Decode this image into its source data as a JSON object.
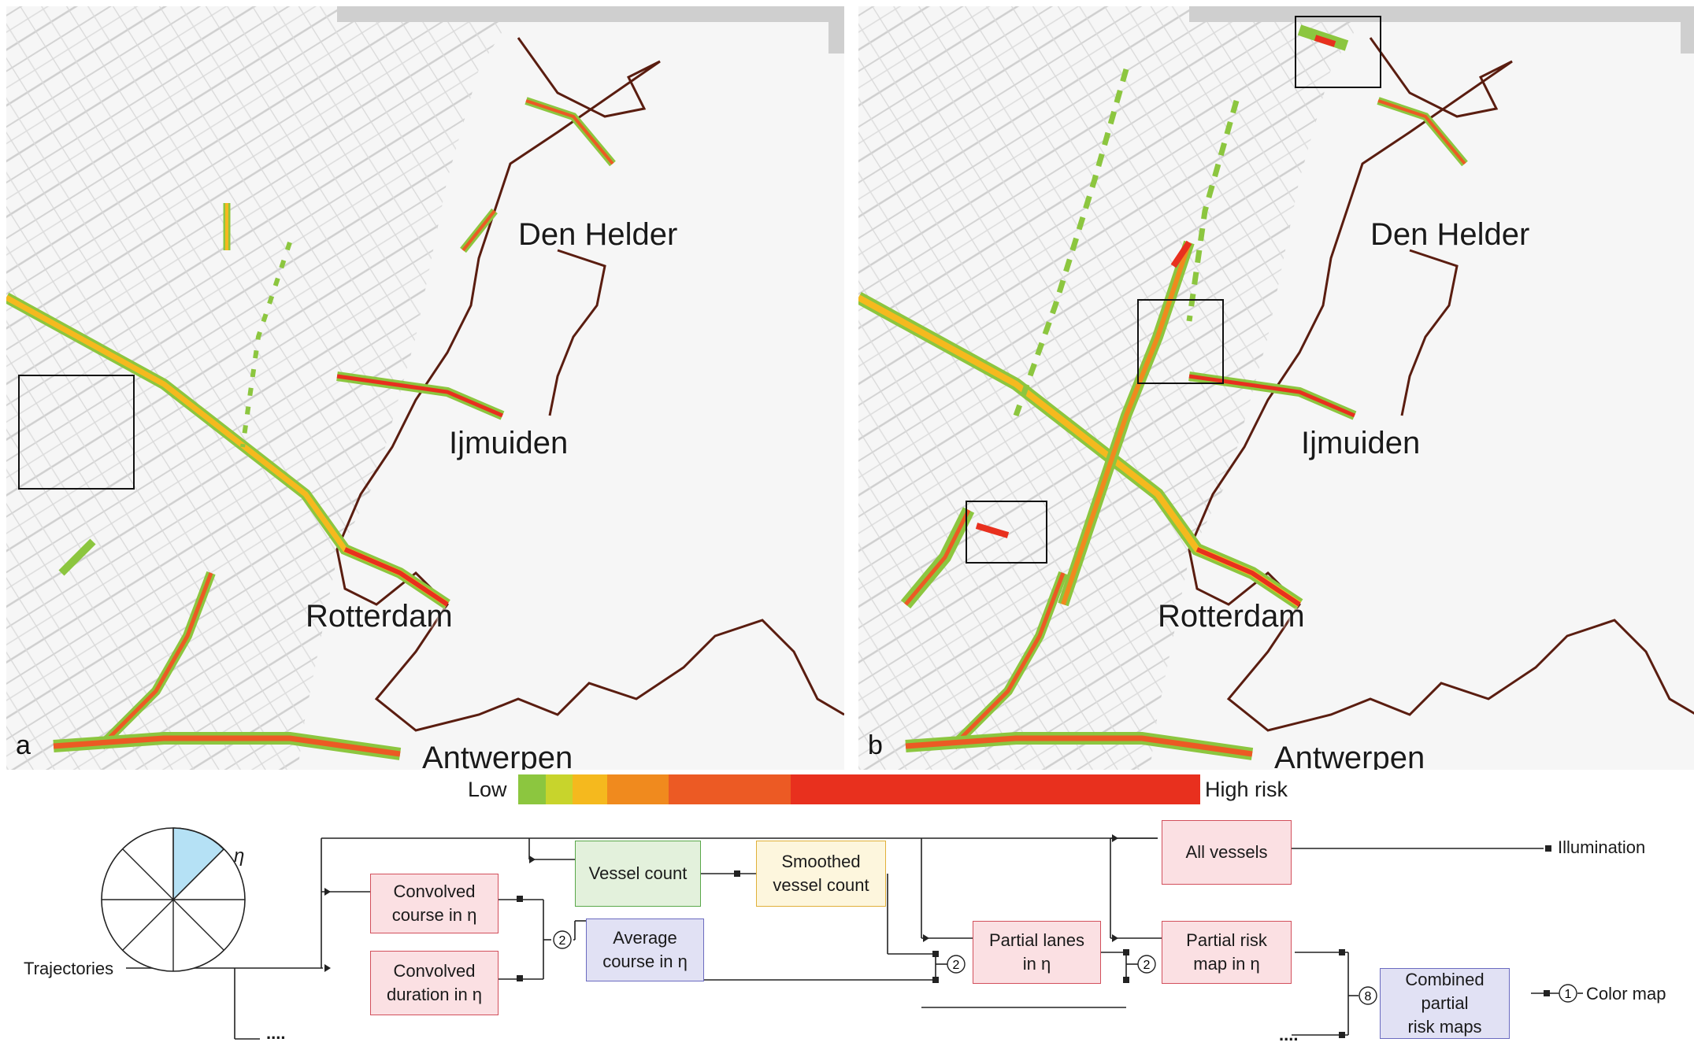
{
  "maps": {
    "a": {
      "letter": "a",
      "highlight_count": 1
    },
    "b": {
      "letter": "b",
      "highlight_count": 3
    }
  },
  "cities": {
    "den_helder": "Den Helder",
    "ijmuiden": "Ijmuiden",
    "rotterdam": "Rotterdam",
    "antwerpen": "Antwerpen"
  },
  "legend": {
    "low": "Low",
    "high": "High risk",
    "colors": [
      "#8cc63f",
      "#c8d42c",
      "#f5b91e",
      "#f08a1e",
      "#ec5a24",
      "#e8301e"
    ]
  },
  "diagram": {
    "sector_symbol": "η",
    "sector_color": "#b5e1f5",
    "inputs": {
      "trajectories": "Trajectories",
      "more": "...."
    },
    "nodes": {
      "convolved_course": "Convolved course in η",
      "convolved_duration": "Convolved duration in η",
      "vessel_count": "Vessel count",
      "smoothed_count": "Smoothed vessel count",
      "average_course": "Average course in η",
      "partial_lanes": "Partial lanes in η",
      "all_vessels": "All vessels",
      "partial_risk": "Partial risk map in η",
      "combined": "Combined partial risk maps"
    },
    "node_lines": {
      "convolved_course": [
        "Convolved",
        "course in η"
      ],
      "convolved_duration": [
        "Convolved",
        "duration in η"
      ],
      "smoothed_count": [
        "Smoothed",
        "vessel count"
      ],
      "average_course": [
        "Average",
        "course in η"
      ],
      "partial_lanes": [
        "Partial lanes",
        "in η"
      ],
      "partial_risk": [
        "Partial risk",
        "map in η"
      ],
      "combined": [
        "Combined",
        "partial",
        "risk maps"
      ]
    },
    "outputs": {
      "illumination": "Illumination",
      "color_map": "Color map"
    },
    "badges": {
      "avg": "2",
      "lanes": "2",
      "risk": "2",
      "combine": "8",
      "color": "1"
    }
  }
}
